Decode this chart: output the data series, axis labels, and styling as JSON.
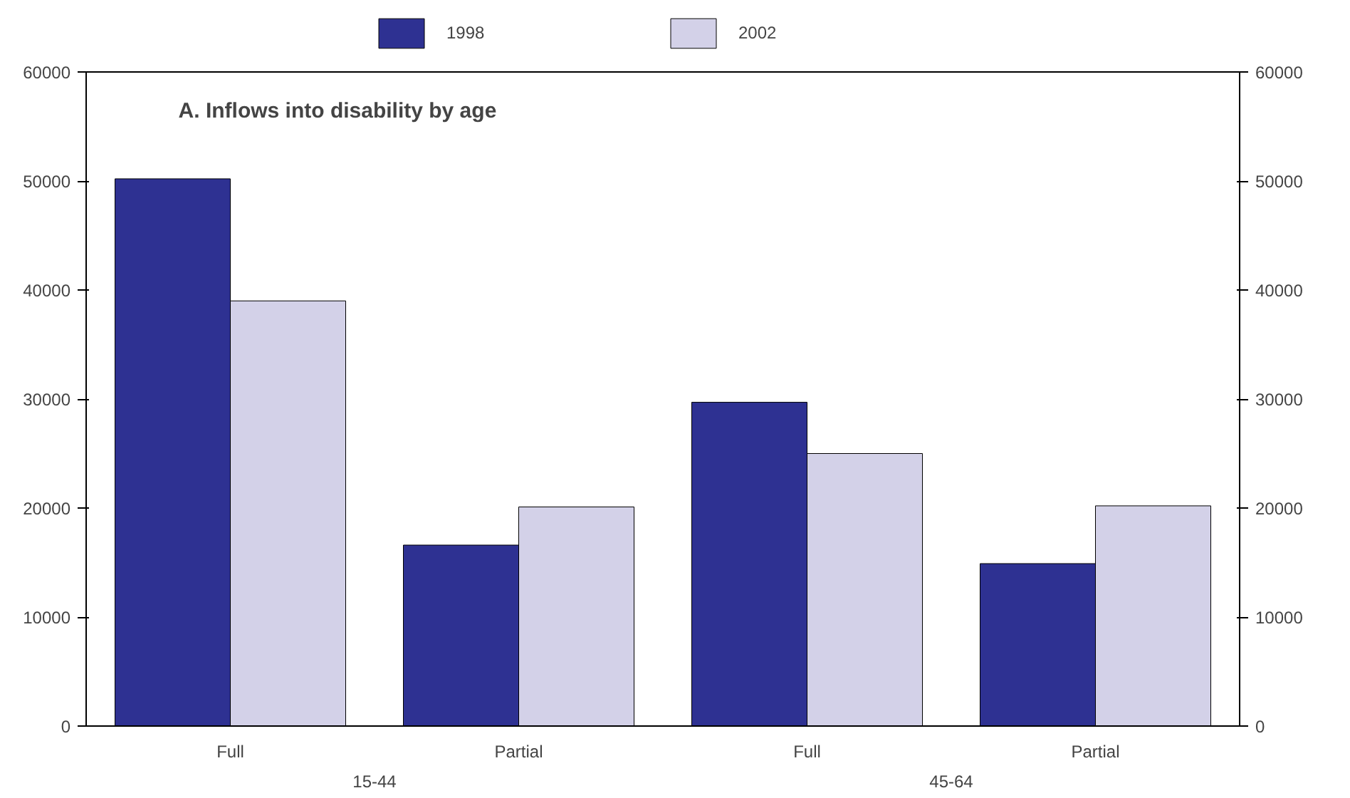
{
  "chart_data": {
    "type": "bar",
    "title": "A. Inflows into disability by age",
    "categories": [
      "Full",
      "Partial",
      "Full",
      "Partial"
    ],
    "series": [
      {
        "name": "1998",
        "color": "#2e3192",
        "values": [
          50200,
          16600,
          29700,
          14900
        ]
      },
      {
        "name": "2002",
        "color": "#d3d1e8",
        "values": [
          39000,
          20100,
          25000,
          20200
        ]
      }
    ],
    "annotations": [
      "15-44",
      "45-64"
    ],
    "ylim": [
      0,
      60000
    ],
    "yticks": [
      0,
      10000,
      20000,
      30000,
      40000,
      50000,
      60000
    ],
    "y2lim": [
      0,
      60000
    ],
    "y2ticks": [
      0,
      10000,
      20000,
      30000,
      40000,
      50000,
      60000
    ],
    "grid": false,
    "legend": "top"
  }
}
